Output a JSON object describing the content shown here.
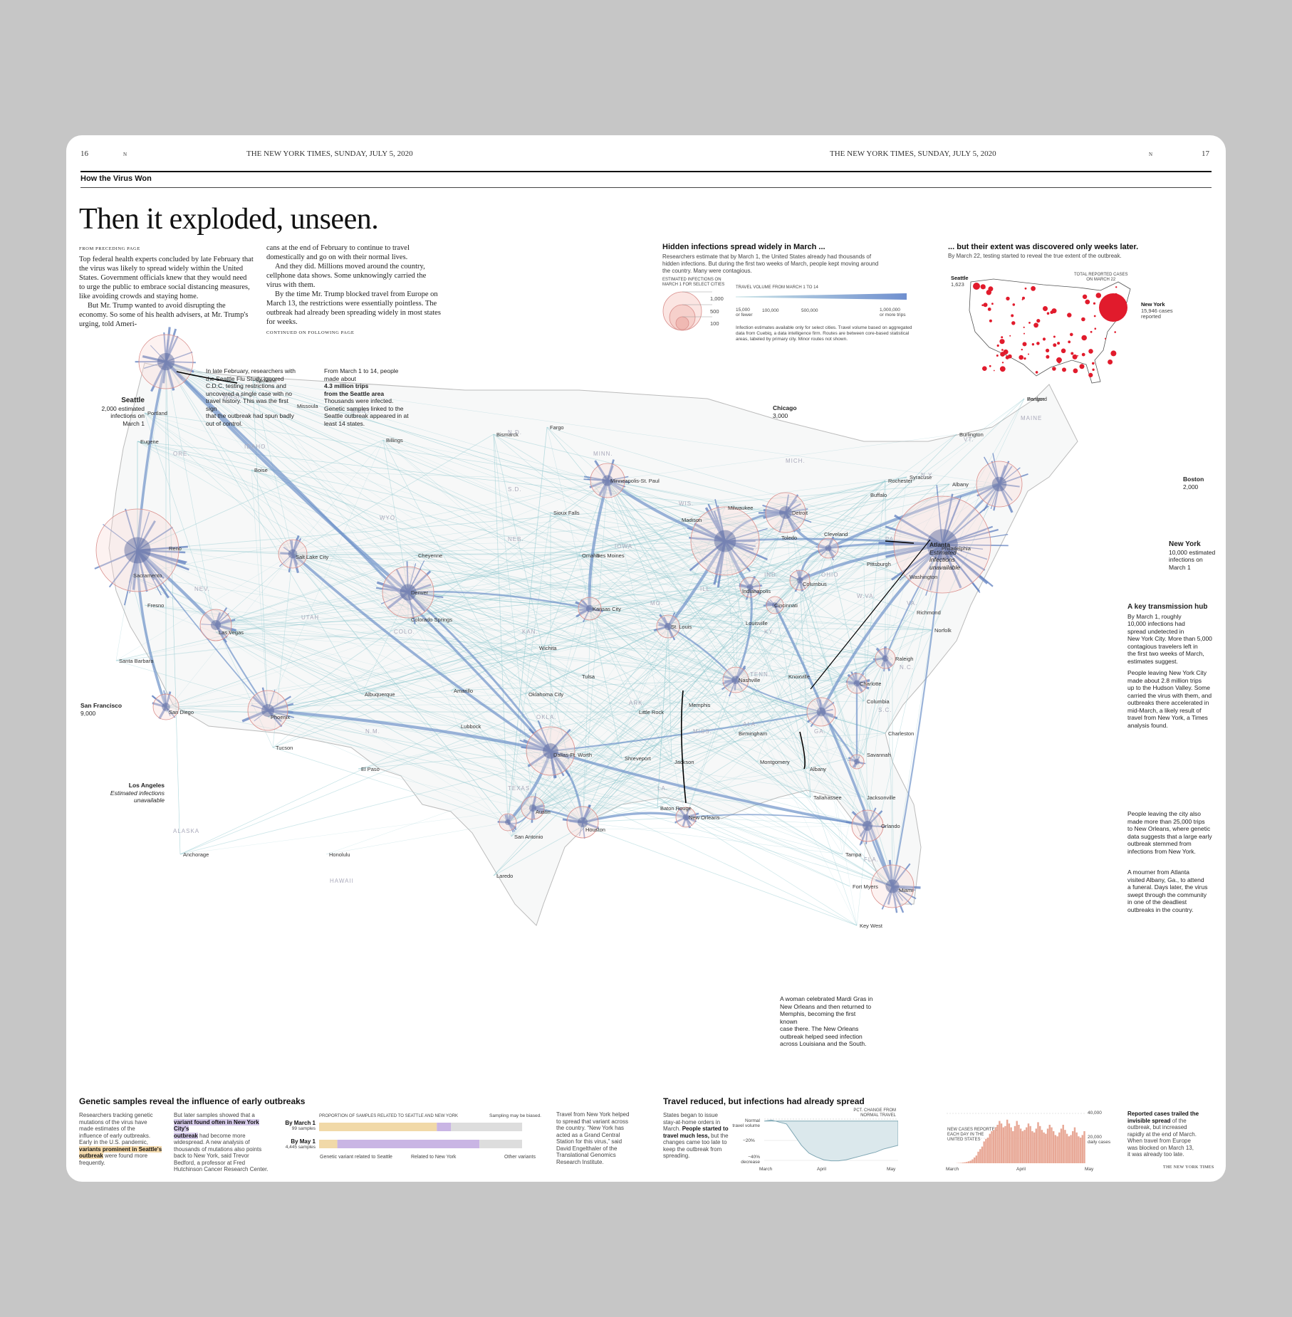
{
  "folio": {
    "left_page": "16",
    "left_mark": "N",
    "left_paper": "THE NEW YORK TIMES, SUNDAY, JULY 5, 2020",
    "right_paper": "THE NEW YORK TIMES, SUNDAY, JULY 5, 2020",
    "right_mark": "N",
    "right_page": "17"
  },
  "section": "How the Virus Won",
  "headline": "Then it exploded, unseen.",
  "article": {
    "kicker": "FROM PRECEDING PAGE",
    "p1": "Top federal health experts concluded by late February that the virus was likely to spread widely within the United States. Government officials knew that they would need to urge the public to embrace social distancing measures, like avoiding crowds and staying home.",
    "p2": "But Mr. Trump wanted to avoid disrupting the economy. So some of his health advisers, at Mr. Trump's urging, told Ameri-",
    "p3": "cans at the end of February to continue to travel domestically and go on with their normal lives.",
    "p4": "And they did. Millions moved around the country, cellphone data shows. Some unknowingly carried the virus with them.",
    "p5": "By the time Mr. Trump blocked travel from Europe on March 13, the restrictions were essentially pointless. The outbreak had already been spreading widely in most states for weeks.",
    "continued": "CONTINUED ON FOLLOWING PAGE"
  },
  "hidden": {
    "title": "Hidden infections spread widely in March ...",
    "desc": "Researchers estimate that by March 1, the United States already had thousands of hidden infections. But during the first two weeks of March, people kept moving around the country. Many were contagious.",
    "infections_label_1": "ESTIMATED INFECTIONS ON",
    "infections_label_2": "MARCH 1 FOR SELECT CITIES",
    "infections_values": [
      "1,000",
      "500",
      "100"
    ],
    "travel_label": "TRAVEL VOLUME FROM MARCH 1 TO 14",
    "travel_ticks": [
      "15,000",
      "100,000",
      "500,000",
      "1,000,000"
    ],
    "travel_tick_low": "or fewer",
    "travel_tick_high": "or more trips",
    "source": "Infection estimates available only for select cities. Travel volume based on aggregated data from Cuebiq, a data intelligence firm. Routes are between core-based statistical areas, labeled by primary city. Minor routes not shown."
  },
  "extent": {
    "title": "... but their extent was discovered only weeks later.",
    "desc": "By March 22, testing started to reveal the true extent of the outbreak.",
    "seattle_label": "Seattle",
    "seattle_value": "1,623",
    "total_label_1": "TOTAL REPORTED CASES",
    "total_label_2": "ON MARCH 22",
    "ny_label": "New York",
    "ny_value": "15,946 cases",
    "ny_value_2": "reported"
  },
  "map": {
    "seattle_title": "Seattle",
    "seattle_note": [
      "2,000 estimated",
      "infections on",
      "March 1"
    ],
    "note_flu": [
      "In late February, researchers with",
      "the Seattle Flu Study ignored",
      "C.D.C. testing restrictions and",
      "uncovered a single case with no",
      "travel history. This was the first sign",
      "that the outbreak had spun badly",
      "out of control."
    ],
    "note_trips_1": [
      "From March 1 to 14, people",
      "made about"
    ],
    "note_trips_bold": [
      "4.3 million trips",
      "from the Seattle area"
    ],
    "note_trips_2": [
      "Thousands were infected.",
      "Genetic samples linked to the",
      "Seattle outbreak appeared in at",
      "least 14 states."
    ],
    "sf_title": "San Francisco",
    "sf_value": "9,000",
    "la_title": "Los Angeles",
    "la_note": [
      "Estimated infections",
      "unavailable"
    ],
    "chicago_title": "Chicago",
    "chicago_value": "3,000",
    "boston_title": "Boston",
    "boston_value": "2,000",
    "ny_title": "New York",
    "ny_note": [
      "10,000 estimated",
      "infections on",
      "March 1"
    ],
    "atlanta_title": "Atlanta",
    "atlanta_note": [
      "Estimated infections",
      "unavailable"
    ],
    "hub_title": "A key transmission hub",
    "hub_p1": [
      "By March 1, roughly",
      "10,000 infections had",
      "spread undetected in",
      "New York City. More than 5,000",
      "contagious travelers left in",
      "the first two weeks of March,",
      "estimates suggest."
    ],
    "hub_p2": [
      "People leaving New York City",
      "made about 2.8 million trips",
      "up to the Hudson Valley. Some",
      "carried the virus with them, and",
      "outbreaks there accelerated in",
      "mid-March, a likely result of",
      "travel from New York, a Times",
      "analysis found."
    ],
    "orleans_note": [
      "People leaving the city also",
      "made more than 25,000 trips",
      "to New Orleans, where genetic",
      "data suggests that a large early",
      "outbreak stemmed from",
      "infections from New York."
    ],
    "albany_note": [
      "A mourner from Atlanta",
      "visited Albany, Ga., to attend",
      "a funeral. Days later, the virus",
      "swept through the community",
      "in one of the deadliest",
      "outbreaks in the country."
    ],
    "mardi_note": [
      "A woman celebrated Mardi Gras in",
      "New Orleans and then returned to",
      "Memphis, becoming the first known",
      "case there. The New Orleans",
      "outbreak helped seed infection",
      "across Louisiana and the South."
    ],
    "cities": [
      "Spokane",
      "Portland",
      "Eugene",
      "Missoula",
      "Boise",
      "Billings",
      "Bismarck",
      "Fargo",
      "Minneapolis-St. Paul",
      "Reno",
      "Sacramento",
      "Fresno",
      "Salt Lake City",
      "Cheyenne",
      "Denver",
      "Colorado Springs",
      "Las Vegas",
      "Santa Barbara",
      "San Diego",
      "Phoenix",
      "Tucson",
      "Albuquerque",
      "Amarillo",
      "El Paso",
      "Lubbock",
      "Oklahoma City",
      "Tulsa",
      "Wichita",
      "Kansas City",
      "Omaha",
      "Des Moines",
      "Sioux Falls",
      "Milwaukee",
      "Madison",
      "St. Louis",
      "Indianapolis",
      "Louisville",
      "Nashville",
      "Memphis",
      "Little Rock",
      "Shreveport",
      "Dallas-Ft. Worth",
      "Austin",
      "San Antonio",
      "Houston",
      "Laredo",
      "Baton Rouge",
      "New Orleans",
      "Jackson",
      "Birmingham",
      "Montgomery",
      "Albany",
      "Tallahassee",
      "Jacksonville",
      "Orlando",
      "Tampa",
      "Fort Myers",
      "Miami",
      "Key West",
      "Savannah",
      "Charleston",
      "Columbia",
      "Charlotte",
      "Raleigh",
      "Norfolk",
      "Richmond",
      "Washington",
      "Philadelphia",
      "Pittsburgh",
      "Columbus",
      "Cincinnati",
      "Cleveland",
      "Detroit",
      "Toledo",
      "Buffalo",
      "Rochester",
      "Syracuse",
      "Albany",
      "Burlington",
      "Portland",
      "Bangor",
      "Knoxville",
      "Anchorage",
      "Honolulu"
    ],
    "states": [
      "WASH.",
      "ORE.",
      "IDAHO",
      "MONT.",
      "N.D.",
      "S.D.",
      "WYO.",
      "NEB.",
      "NEV.",
      "UTAH",
      "COLO.",
      "KAN.",
      "MINN.",
      "IOWA",
      "WIS.",
      "MO.",
      "OKLA.",
      "ARK.",
      "TEXAS",
      "N.M.",
      "MICH.",
      "ILL.",
      "IND.",
      "OHIO",
      "KY.",
      "TENN.",
      "MISS.",
      "ALA.",
      "GA.",
      "FLA.",
      "S.C.",
      "N.C.",
      "VA.",
      "W.VA.",
      "PA.",
      "N.Y.",
      "MAINE",
      "VT.",
      "LA.",
      "ALASKA",
      "HAWAII"
    ]
  },
  "genetic": {
    "title": "Genetic samples reveal the influence of early outbreaks",
    "col1": [
      "Researchers tracking genetic",
      "mutations of the virus have",
      "made estimates of the",
      "influence of early outbreaks.",
      "Early in the U.S. pandemic,"
    ],
    "col1_hl": [
      "variants prominent in Seattle's",
      "outbreak"
    ],
    "col1_end": [
      "were found more",
      "frequently."
    ],
    "col2_pre": "But later samples showed that a",
    "col2_hl": [
      "variant found often in New York City's",
      "outbreak"
    ],
    "col2_end": [
      "had become more",
      "widespread. A new analysis of",
      "thousands of mutations also points",
      "back to New York, said Trevor",
      "Bedford, a professor at Fred",
      "Hutchinson Cancer Research Center."
    ],
    "chart_label": "PROPORTION OF SAMPLES RELATED TO SEATTLE AND NEW YORK",
    "bias_note": "Sampling may be biased.",
    "row1_label": "By March 1",
    "row1_samples": "99 samples",
    "row2_label": "By May 1",
    "row2_samples": "4,445 samples",
    "legend_seattle": "Genetic variant related to Seattle",
    "legend_ny": "Related to New York",
    "legend_other": "Other variants",
    "col3": [
      "Travel from New York helped",
      "to spread that variant across",
      "the country. “New York has",
      "acted as a Grand Central",
      "Station for this virus,” said",
      "David Engelthaler of the",
      "Translational Genomics",
      "Research Institute."
    ]
  },
  "travel": {
    "title": "Travel reduced, but infections had already spread",
    "col1_a": [
      "States began to issue",
      "stay-at-home orders in",
      "March."
    ],
    "col1_bold": [
      "People started to",
      "travel much less,"
    ],
    "col1_b": [
      "but the",
      "changes came too late to",
      "keep the outbreak from",
      "spreading."
    ],
    "pct_label": [
      "PCT. CHANGE FROM",
      "NORMAL TRAVEL"
    ],
    "y_normal": [
      "Normal",
      "travel volume"
    ],
    "y_20": "−20%",
    "y_40": [
      "−40%",
      "decrease"
    ],
    "x_ticks": [
      "March",
      "April",
      "May"
    ],
    "cases_label": [
      "NEW CASES REPORTED",
      "EACH DAY IN THE",
      "UNITED STATES"
    ],
    "cases_40k": "40,000",
    "cases_20k": "20,000",
    "cases_20k_unit": "daily cases",
    "cases_x": [
      "March",
      "April",
      "May"
    ],
    "col3_pre": [
      "Reported cases trailed the"
    ],
    "col3_bold": [
      "invisible spread"
    ],
    "col3_end": [
      "of the",
      "outbreak, but increased",
      "rapidly at the end of March.",
      "When travel from Europe",
      "was blocked on March 13,",
      "it was already too late."
    ],
    "credit": "THE NEW YORK TIMES"
  },
  "chart_data": [
    {
      "type": "bar",
      "title": "PROPORTION OF SAMPLES RELATED TO SEATTLE AND NEW YORK",
      "orientation": "horizontal-stacked",
      "categories": [
        "By March 1",
        "By May 1"
      ],
      "series": [
        {
          "name": "Genetic variant related to Seattle",
          "values": [
            0.58,
            0.09
          ]
        },
        {
          "name": "Related to New York",
          "values": [
            0.07,
            0.7
          ]
        },
        {
          "name": "Other variants",
          "values": [
            0.35,
            0.21
          ]
        }
      ],
      "colors": {
        "seattle": "#f1d9a8",
        "ny": "#c9b5e4",
        "other": "#dddddd"
      }
    },
    {
      "type": "area",
      "title": "PCT. CHANGE FROM NORMAL TRAVEL",
      "x": [
        "Mar 1",
        "Mar 5",
        "Mar 9",
        "Mar 13",
        "Mar 17",
        "Mar 21",
        "Mar 25",
        "Mar 29",
        "Apr 2",
        "Apr 6",
        "Apr 10",
        "Apr 14",
        "Apr 18",
        "Apr 22",
        "Apr 26",
        "Apr 30",
        "May 4",
        "May 8",
        "May 12"
      ],
      "y": [
        0,
        1,
        -1,
        -3,
        -14,
        -25,
        -33,
        -37,
        -40,
        -41,
        -41,
        -40,
        -38,
        -36,
        -34,
        -32,
        -29,
        -27,
        -25
      ],
      "ylim": [
        -45,
        5
      ]
    },
    {
      "type": "bar",
      "title": "NEW CASES REPORTED EACH DAY IN THE UNITED STATES",
      "ylim": [
        0,
        40000
      ],
      "values": [
        0,
        0,
        0,
        0,
        0,
        100,
        200,
        300,
        500,
        700,
        1000,
        1500,
        2000,
        3000,
        4500,
        6000,
        9000,
        11000,
        13000,
        17000,
        19000,
        20000,
        23000,
        25000,
        26000,
        28000,
        30000,
        33000,
        31000,
        28000,
        29000,
        34000,
        31000,
        28000,
        25000,
        29000,
        33000,
        30000,
        27000,
        25000,
        26000,
        28000,
        31000,
        29000,
        25000,
        24000,
        27000,
        32000,
        29000,
        26000,
        24000,
        23000,
        27000,
        30000,
        28000,
        25000,
        22000,
        21000,
        24000,
        27000,
        30000,
        26000,
        23000,
        21000,
        22000,
        25000,
        28000,
        24000,
        21000,
        20000,
        22000,
        25000
      ]
    }
  ],
  "colors": {
    "route": "#6f93c9",
    "route_light": "#8fc7cf",
    "circle_fill": "#f8d9d6",
    "circle_stroke": "#d98e8b",
    "case_dot": "#e11b2c"
  }
}
